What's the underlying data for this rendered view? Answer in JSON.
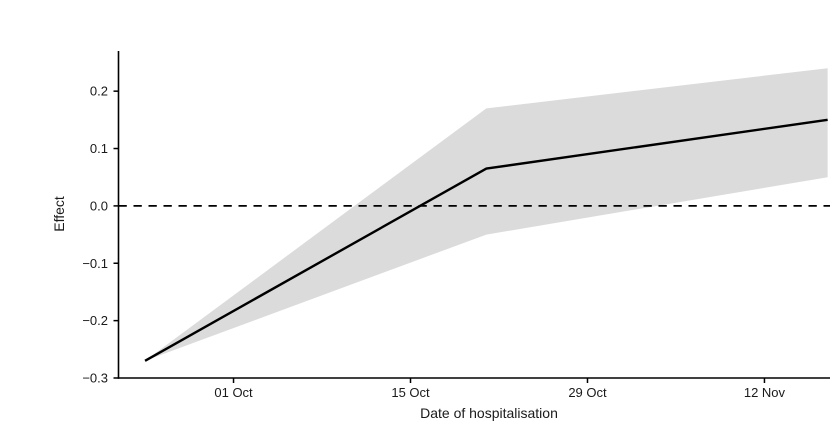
{
  "chart_data": {
    "type": "line",
    "title": "",
    "xlabel": "Date of hospitalisation",
    "ylabel": "Effect",
    "grid": false,
    "legend": false,
    "x_unit": "days relative to 01 Oct",
    "series": [
      {
        "name": "effect",
        "dates": [
          "24 Sep",
          "21 Oct",
          "17 Nov"
        ],
        "x_days": [
          -7,
          20,
          47
        ],
        "values": [
          -0.27,
          0.065,
          0.15
        ]
      }
    ],
    "ci_band": {
      "lower": [
        -0.27,
        -0.05,
        0.05
      ],
      "upper": [
        -0.27,
        0.17,
        0.24
      ]
    },
    "reference_line": {
      "y": 0,
      "style": "dashed"
    },
    "x_ticks": {
      "labels": [
        "01 Oct",
        "15 Oct",
        "29 Oct",
        "12 Nov"
      ],
      "days": [
        0,
        14,
        28,
        42
      ]
    },
    "y_ticks": {
      "labels": [
        "0.2",
        "0.1",
        "0.0",
        "−0.1",
        "−0.2",
        "−0.3"
      ],
      "values": [
        0.2,
        0.1,
        0.0,
        -0.1,
        -0.2,
        -0.3
      ]
    },
    "xlim_days": [
      -9.1,
      49.4
    ],
    "ylim": [
      -0.3,
      0.27
    ],
    "colors": {
      "line": "#000000",
      "band": "#DBDBDB",
      "zero_line": "#000000",
      "axis": "#000000",
      "text": "#1a1a1a"
    }
  }
}
